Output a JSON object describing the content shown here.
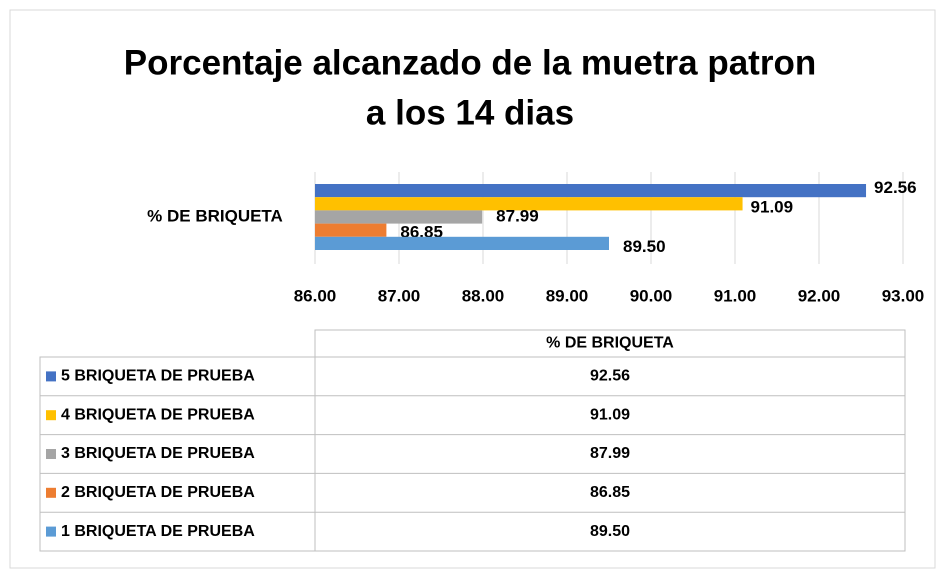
{
  "chart_data": {
    "type": "bar",
    "orientation": "horizontal",
    "title": [
      "Porcentaje alcanzado de la muetra patron",
      "a los 14 dias"
    ],
    "categories": [
      "% DE BRIQUETA"
    ],
    "series": [
      {
        "name": "5 BRIQUETA DE PRUEBA",
        "color": "#4472c4",
        "values": [
          92.56
        ],
        "value_labels": [
          "92.56"
        ]
      },
      {
        "name": "4 BRIQUETA DE PRUEBA",
        "color": "#ffc000",
        "values": [
          91.09
        ],
        "value_labels": [
          "91.09"
        ]
      },
      {
        "name": "3 BRIQUETA DE PRUEBA",
        "color": "#a5a5a5",
        "values": [
          87.99
        ],
        "value_labels": [
          "87.99"
        ]
      },
      {
        "name": "2 BRIQUETA DE PRUEBA",
        "color": "#ed7d31",
        "values": [
          86.85
        ],
        "value_labels": [
          "86.85"
        ]
      },
      {
        "name": "1 BRIQUETA DE PRUEBA",
        "color": "#5b9bd5",
        "values": [
          89.5
        ],
        "value_labels": [
          "89.50"
        ]
      }
    ],
    "xlim": [
      86,
      93
    ],
    "xticks": [
      {
        "value": 86,
        "label": "86.00"
      },
      {
        "value": 87,
        "label": "87.00"
      },
      {
        "value": 88,
        "label": "88.00"
      },
      {
        "value": 89,
        "label": "89.00"
      },
      {
        "value": 90,
        "label": "90.00"
      },
      {
        "value": 91,
        "label": "91.00"
      },
      {
        "value": 92,
        "label": "92.00"
      },
      {
        "value": 93,
        "label": "93.00"
      }
    ],
    "grid": true,
    "data_table": true
  }
}
